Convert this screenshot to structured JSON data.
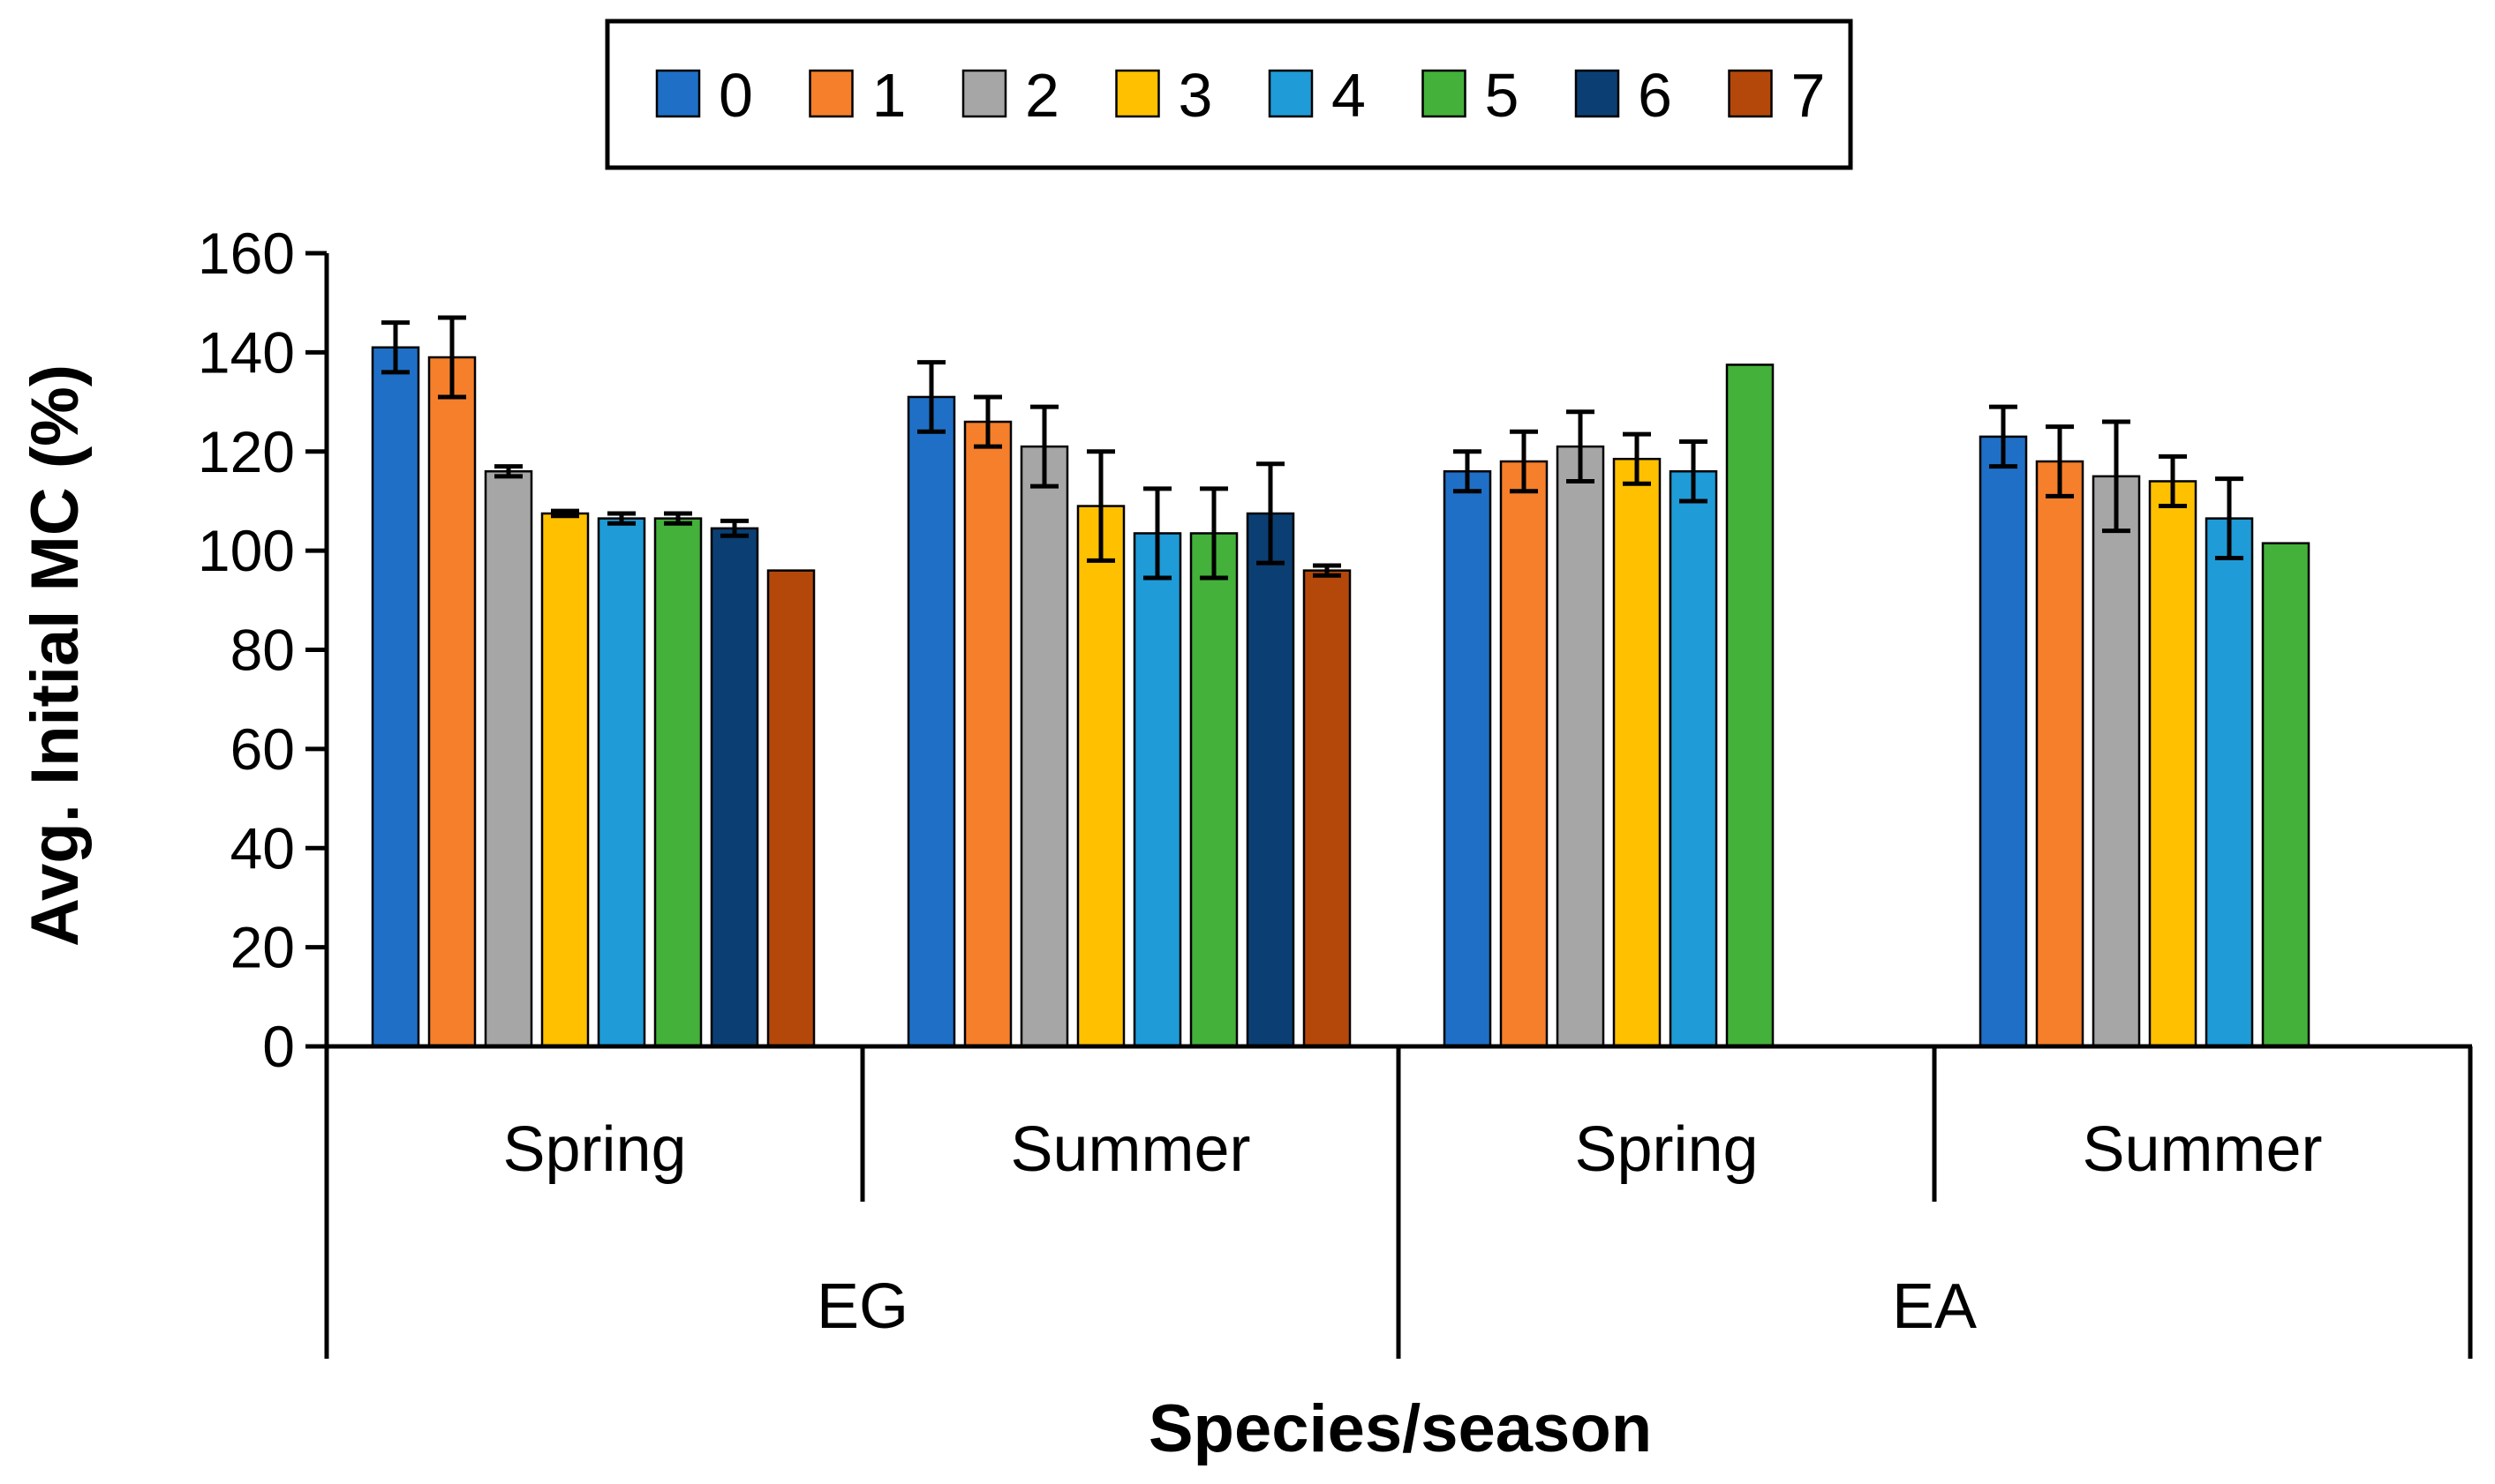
{
  "chart_data": {
    "type": "bar",
    "title": "",
    "ylabel": "Avg. Initial MC (%)",
    "xlabel": "Species/season",
    "ylim": [
      0,
      160
    ],
    "yticks": [
      0,
      20,
      40,
      60,
      80,
      100,
      120,
      140,
      160
    ],
    "grid": false,
    "legend_position": "top-center",
    "groups": [
      {
        "species": "EG",
        "season": "Spring"
      },
      {
        "species": "EG",
        "season": "Summer"
      },
      {
        "species": "EA",
        "season": "Spring"
      },
      {
        "species": "EA",
        "season": "Summer"
      }
    ],
    "species_labels": [
      "EG",
      "EA"
    ],
    "categories": [
      "Spring",
      "Summer",
      "Spring",
      "Summer"
    ],
    "series": [
      {
        "name": "0",
        "color": "#1F6FC6",
        "values": [
          141,
          131,
          116,
          123
        ],
        "errors": [
          5,
          7,
          4,
          6
        ]
      },
      {
        "name": "1",
        "color": "#F57F2B",
        "values": [
          139,
          126,
          118,
          118
        ],
        "errors": [
          8,
          5,
          6,
          7
        ]
      },
      {
        "name": "2",
        "color": "#A6A6A6",
        "values": [
          116,
          121,
          121,
          115
        ],
        "errors": [
          1,
          8,
          7,
          11
        ]
      },
      {
        "name": "3",
        "color": "#FFC000",
        "values": [
          107.5,
          109,
          118.5,
          114
        ],
        "errors": [
          0.5,
          11,
          5,
          5
        ]
      },
      {
        "name": "4",
        "color": "#1F9BD7",
        "values": [
          106.5,
          103.5,
          116,
          106.5
        ],
        "errors": [
          1,
          9,
          6,
          8
        ]
      },
      {
        "name": "5",
        "color": "#43B13A",
        "values": [
          106.5,
          103.5,
          137.5,
          101.5
        ],
        "errors": [
          1,
          9,
          0,
          0
        ]
      },
      {
        "name": "6",
        "color": "#0B3F73",
        "values": [
          104.5,
          107.5,
          null,
          null
        ],
        "errors": [
          1.5,
          10,
          null,
          null
        ]
      },
      {
        "name": "7",
        "color": "#B4480A",
        "values": [
          96,
          96,
          null,
          null
        ],
        "errors": [
          0,
          1,
          null,
          null
        ]
      }
    ]
  }
}
